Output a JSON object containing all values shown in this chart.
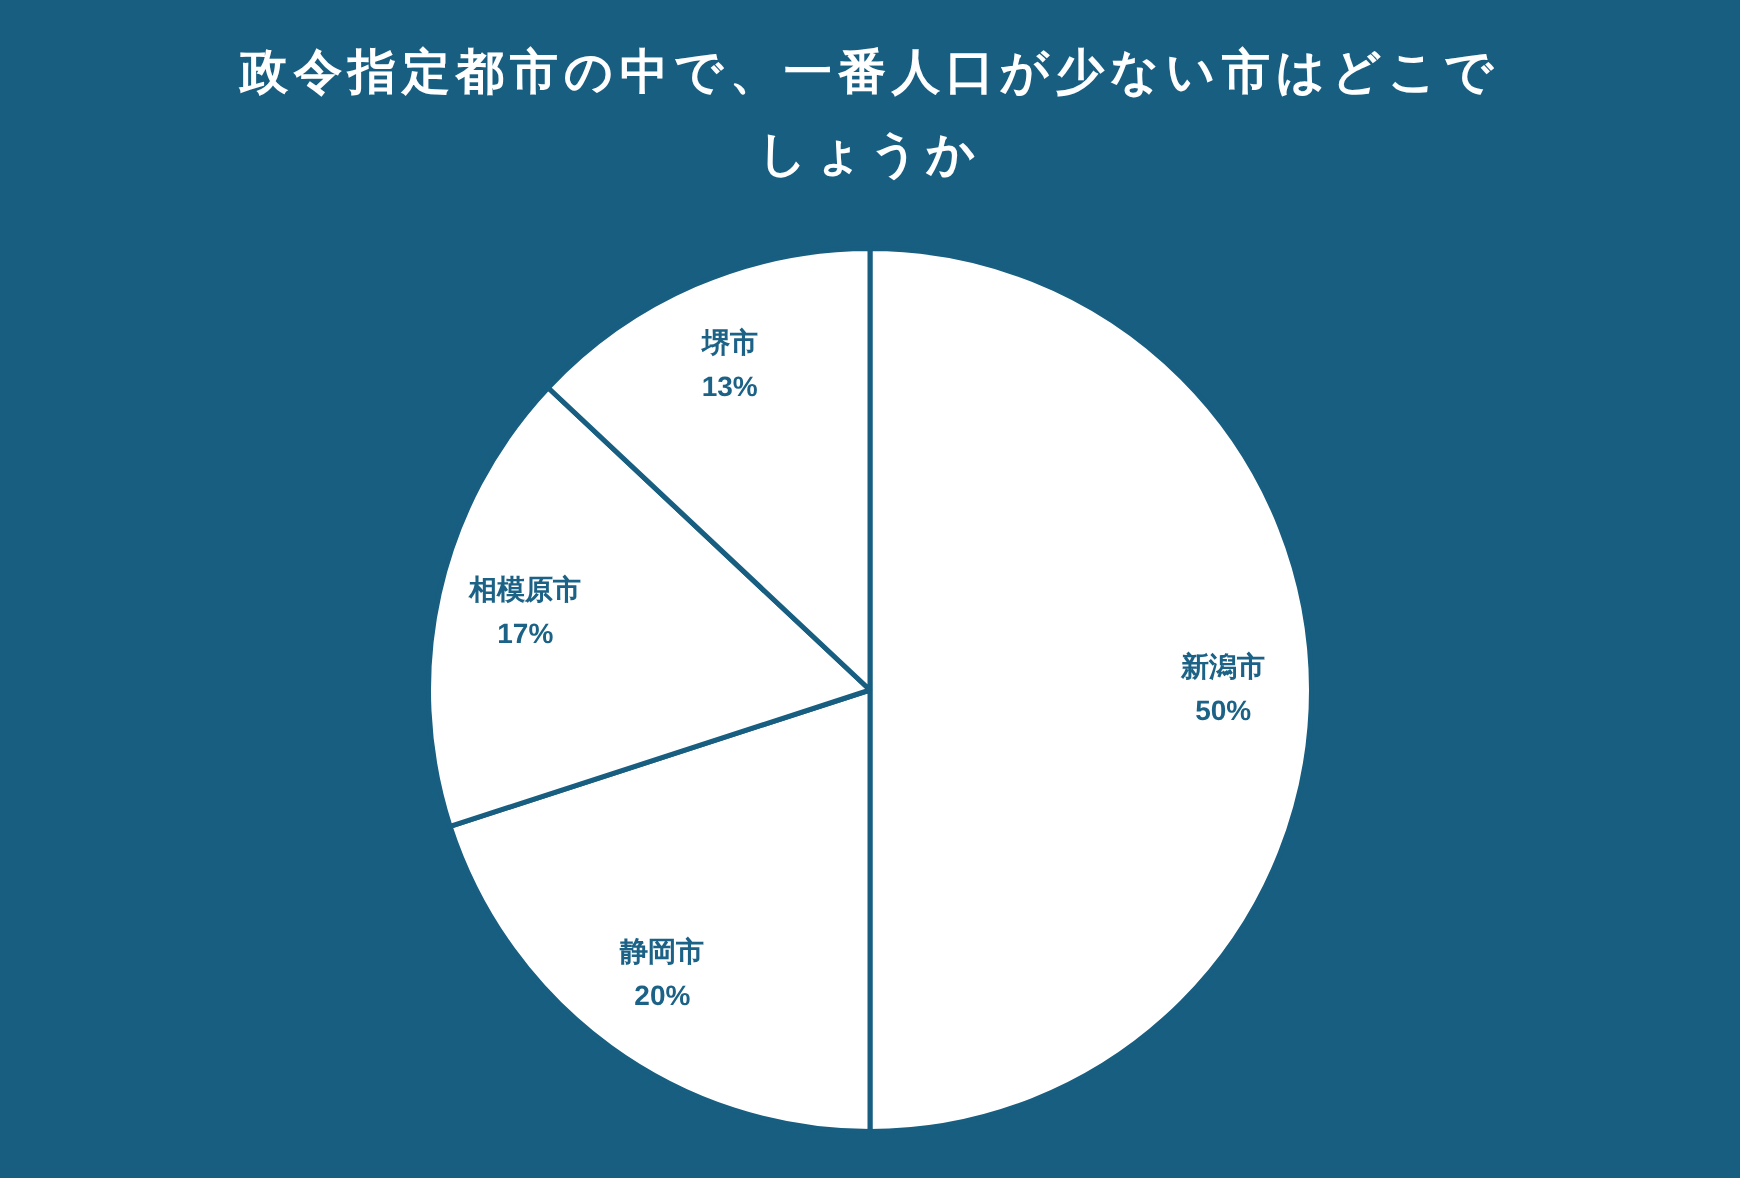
{
  "chart_data": {
    "type": "pie",
    "title": "政令指定都市の中で、一番人口が少ない市はどこでしょうか",
    "categories": [
      "新潟市",
      "静岡市",
      "相模原市",
      "堺市"
    ],
    "values": [
      50,
      20,
      17,
      13
    ],
    "colors": [
      "#ffffff",
      "#ffffff",
      "#ffffff",
      "#ffffff"
    ],
    "value_labels": [
      "50%",
      "20%",
      "17%",
      "13%"
    ],
    "legend": false
  }
}
